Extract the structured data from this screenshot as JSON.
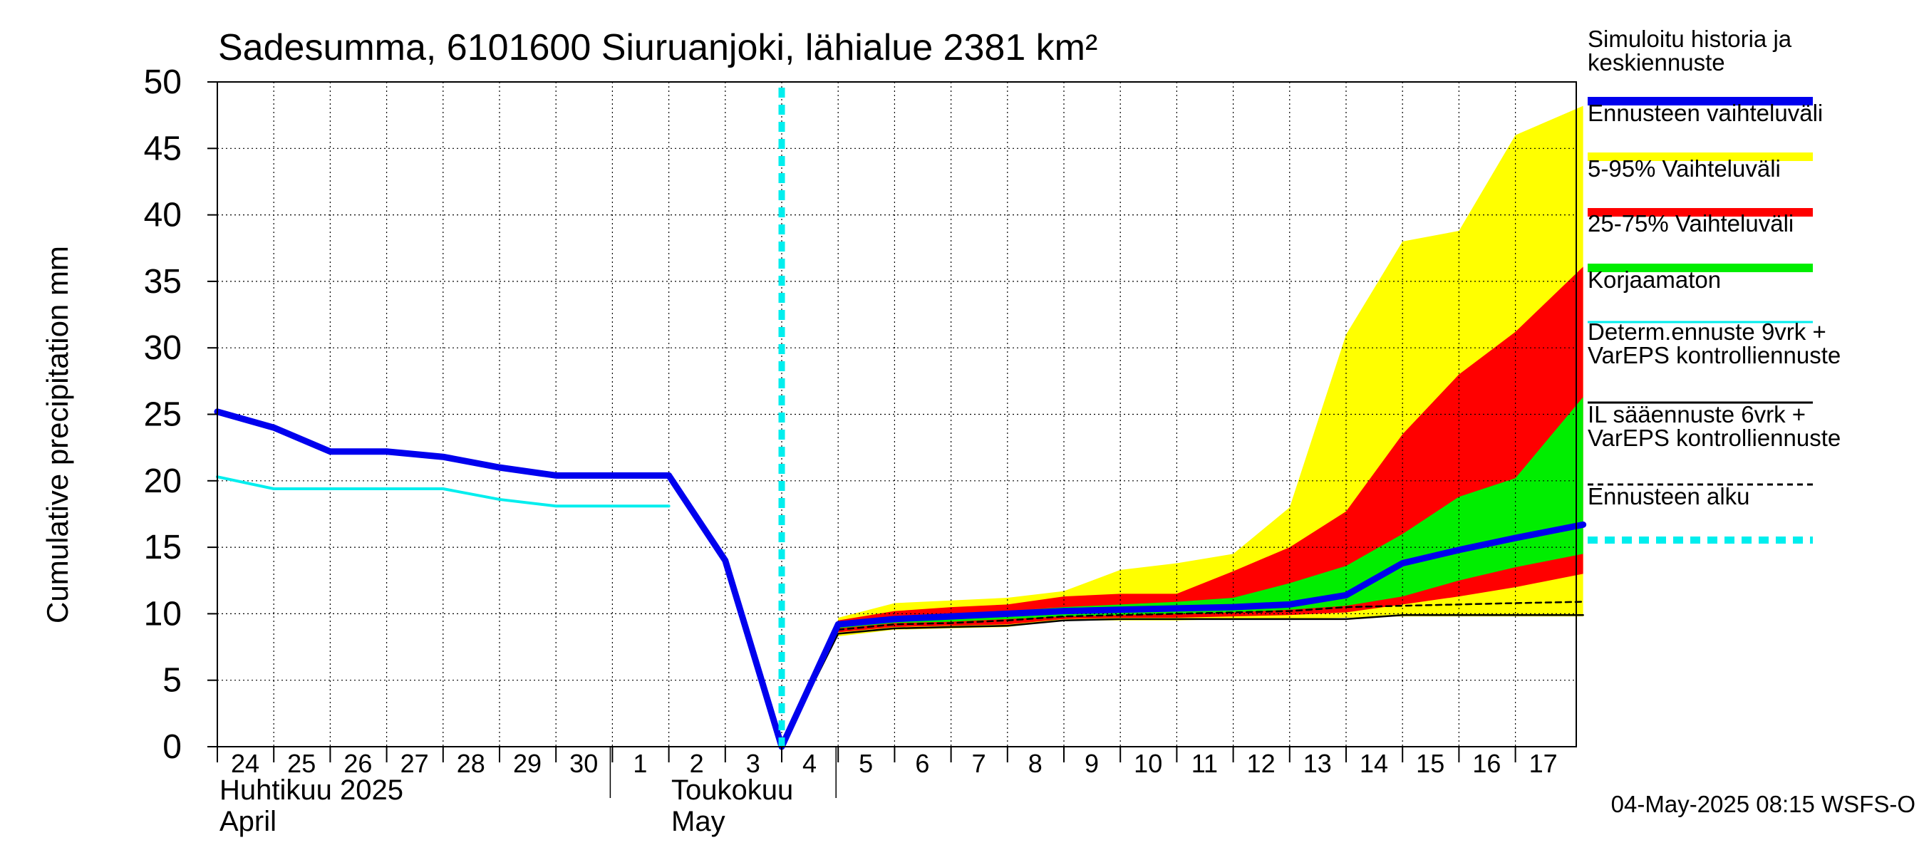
{
  "chart_data": {
    "type": "area",
    "title": "Sadesumma, 6101600 Siuruanjoki, lähialue 2381 km²",
    "ylabel": "Cumulative precipitation   mm",
    "ylim": [
      0,
      50
    ],
    "yticks": [
      0,
      5,
      10,
      15,
      20,
      25,
      30,
      35,
      40,
      45,
      50
    ],
    "xlim": [
      0,
      24.2
    ],
    "x_ticks": [
      {
        "x": 0,
        "label": "24"
      },
      {
        "x": 1,
        "label": "25"
      },
      {
        "x": 2,
        "label": "26"
      },
      {
        "x": 3,
        "label": "27"
      },
      {
        "x": 4,
        "label": "28"
      },
      {
        "x": 5,
        "label": "29"
      },
      {
        "x": 6,
        "label": "30"
      },
      {
        "x": 7,
        "label": "1"
      },
      {
        "x": 8,
        "label": "2"
      },
      {
        "x": 9,
        "label": "3"
      },
      {
        "x": 10,
        "label": "4"
      },
      {
        "x": 11,
        "label": "5"
      },
      {
        "x": 12,
        "label": "6"
      },
      {
        "x": 13,
        "label": "7"
      },
      {
        "x": 14,
        "label": "8"
      },
      {
        "x": 15,
        "label": "9"
      },
      {
        "x": 16,
        "label": "10"
      },
      {
        "x": 17,
        "label": "11"
      },
      {
        "x": 18,
        "label": "12"
      },
      {
        "x": 19,
        "label": "13"
      },
      {
        "x": 20,
        "label": "14"
      },
      {
        "x": 21,
        "label": "15"
      },
      {
        "x": 22,
        "label": "16"
      },
      {
        "x": 23,
        "label": "17"
      }
    ],
    "month_labels": {
      "april_fi": "Huhtikuu  2025",
      "april_en": "April",
      "may_fi": "Toukokuu",
      "may_en": "May"
    },
    "forecast_start_x": 10,
    "bands": {
      "x": [
        11,
        12,
        13,
        14,
        15,
        16,
        17,
        18,
        19,
        20,
        21,
        22,
        23,
        24.2
      ],
      "ensemble_range": {
        "low": [
          8.3,
          8.8,
          8.9,
          9.0,
          9.5,
          9.5,
          9.5,
          9.6,
          9.6,
          9.7,
          9.8,
          9.8,
          9.8,
          9.8
        ],
        "high": [
          9.7,
          10.8,
          11.0,
          11.2,
          11.7,
          13.3,
          13.8,
          14.5,
          18.0,
          31.0,
          38.0,
          38.8,
          46.0,
          48.2
        ]
      },
      "p5_95": {
        "low": [
          8.6,
          9.0,
          9.1,
          9.2,
          9.6,
          9.7,
          9.7,
          9.8,
          9.9,
          10.1,
          10.7,
          11.3,
          12.0,
          13.0
        ],
        "high": [
          9.5,
          10.2,
          10.5,
          10.7,
          11.3,
          11.5,
          11.5,
          13.2,
          15.0,
          17.7,
          23.5,
          28.0,
          31.2,
          36.1
        ]
      },
      "p25_75": {
        "low": [
          8.9,
          9.3,
          9.4,
          9.6,
          9.8,
          9.9,
          10.0,
          10.1,
          10.3,
          10.6,
          11.3,
          12.5,
          13.5,
          14.5
        ],
        "high": [
          9.3,
          9.8,
          10.0,
          10.2,
          10.5,
          10.7,
          10.9,
          11.2,
          12.3,
          13.6,
          16.0,
          18.8,
          20.2,
          26.3
        ]
      }
    },
    "series": [
      {
        "name": "Simuloitu historia ja keskiennuste",
        "color": "#0000ee",
        "x": [
          0,
          1,
          2,
          3,
          4,
          5,
          6,
          7,
          8,
          9,
          10,
          11,
          12,
          13,
          14,
          15,
          16,
          17,
          18,
          19,
          20,
          21,
          22,
          23,
          24.2
        ],
        "y": [
          25.2,
          24.0,
          22.2,
          22.2,
          21.8,
          21.0,
          20.4,
          20.4,
          20.4,
          14.0,
          0,
          9.2,
          9.6,
          9.8,
          10.0,
          10.2,
          10.3,
          10.4,
          10.5,
          10.7,
          11.4,
          13.8,
          14.8,
          15.7,
          16.7
        ]
      },
      {
        "name": "Korjaamaton",
        "color": "#00eeee",
        "x": [
          0,
          1,
          2,
          3,
          4,
          5,
          6,
          7,
          8
        ],
        "y": [
          20.3,
          19.4,
          19.4,
          19.4,
          19.4,
          18.6,
          18.1,
          18.1,
          18.1
        ]
      },
      {
        "name": "Determ.ennuste 9vrk + VarEPS kontrolliennuste",
        "color": "#000000",
        "x": [
          10,
          11,
          12,
          13,
          14,
          15,
          16,
          17,
          18,
          19,
          20,
          21,
          22,
          23,
          24.2
        ],
        "y": [
          0,
          8.5,
          8.9,
          9.0,
          9.1,
          9.5,
          9.6,
          9.6,
          9.6,
          9.6,
          9.6,
          9.9,
          9.9,
          9.9,
          9.9
        ]
      },
      {
        "name": "IL sääennuste 6vrk + VarEPS kontrolliennuste",
        "color": "#000000",
        "x": [
          10,
          11,
          12,
          13,
          14,
          15,
          16,
          17,
          18,
          19,
          20,
          21,
          22,
          23,
          24.2
        ],
        "y": [
          0,
          8.8,
          9.2,
          9.3,
          9.5,
          9.8,
          9.9,
          10.0,
          10.1,
          10.2,
          10.5,
          10.6,
          10.7,
          10.8,
          10.9
        ]
      }
    ],
    "legend": [
      {
        "lines": [
          "Simuloitu historia ja",
          "keskiennuste"
        ],
        "color": "#0000ee",
        "style": "thick"
      },
      {
        "lines": [
          "Ennusteen vaihteluväli"
        ],
        "color": "#ffff00",
        "style": "thick"
      },
      {
        "lines": [
          "5-95% Vaihteluväli"
        ],
        "color": "#ff0000",
        "style": "thick"
      },
      {
        "lines": [
          "25-75% Vaihteluväli"
        ],
        "color": "#00ee00",
        "style": "thick"
      },
      {
        "lines": [
          "Korjaamaton"
        ],
        "color": "#00eeee",
        "style": "thin"
      },
      {
        "lines": [
          "Determ.ennuste 9vrk +",
          "VarEPS kontrolliennuste"
        ],
        "color": "#000000",
        "style": "thin"
      },
      {
        "lines": [
          "IL sääennuste 6vrk  +",
          "  VarEPS kontrolliennuste"
        ],
        "color": "#000000",
        "style": "dashed"
      },
      {
        "lines": [
          "Ennusteen alku"
        ],
        "color": "#00eeee",
        "style": "thickdashed"
      }
    ],
    "legend_placement": "right",
    "grid": true,
    "footer": "04-May-2025 08:15 WSFS-O"
  }
}
